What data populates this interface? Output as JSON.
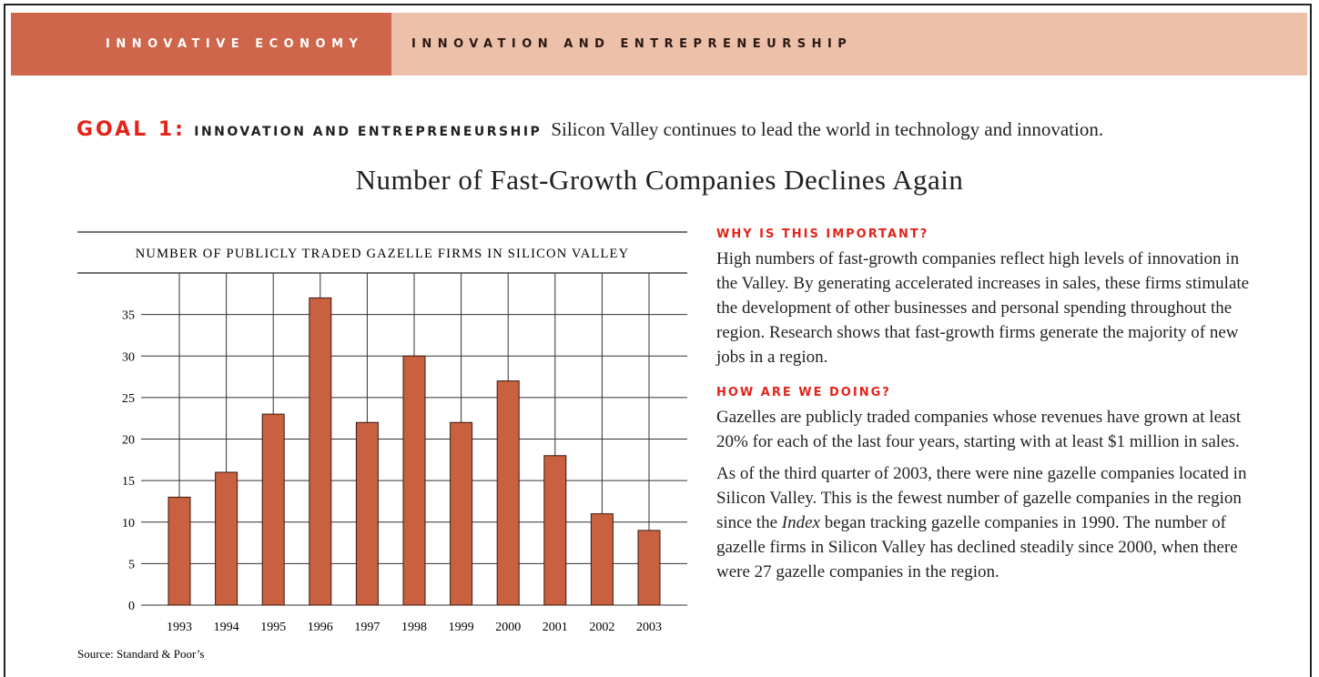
{
  "header": {
    "section": "INNOVATIVE ECONOMY",
    "topic": "INNOVATION AND ENTREPRENEURSHIP"
  },
  "goal": {
    "label": "GOAL 1:",
    "name": "INNOVATION AND ENTREPRENEURSHIP",
    "statement": "Silicon Valley continues to lead the world in technology and innovation."
  },
  "title": "Number of Fast-Growth Companies Declines Again",
  "chart_data": {
    "type": "bar",
    "title": "NUMBER OF PUBLICLY TRADED GAZELLE FIRMS IN SILICON VALLEY",
    "categories": [
      "1993",
      "1994",
      "1995",
      "1996",
      "1997",
      "1998",
      "1999",
      "2000",
      "2001",
      "2002",
      "2003"
    ],
    "values": [
      13,
      16,
      23,
      37,
      22,
      30,
      22,
      27,
      18,
      11,
      9
    ],
    "color": "#c9603f",
    "ylim": [
      0,
      40
    ],
    "yticks": [
      0,
      5,
      10,
      15,
      20,
      25,
      30,
      35
    ],
    "grid": true,
    "source": "Source: Standard & Poor’s"
  },
  "sections": [
    {
      "heading": "WHY IS THIS IMPORTANT?",
      "paragraphs": [
        [
          {
            "text": "High numbers of fast-growth companies reflect high levels of innovation in the Valley. By generating accelerated increases in sales, these firms stimulate the development of other businesses and personal spending throughout the region. Research shows that fast-growth firms generate the majority of new jobs in a region."
          }
        ]
      ]
    },
    {
      "heading": "HOW ARE WE DOING?",
      "paragraphs": [
        [
          {
            "text": "Gazelles are publicly traded companies whose revenues have grown at least 20% for each of the last four years, starting with at least $1 million in sales."
          }
        ],
        [
          {
            "text": "As of the third quarter of 2003, there were nine gazelle companies located in Silicon Valley. This is the fewest number of gazelle companies in the region since the "
          },
          {
            "text": "Index",
            "italic": true
          },
          {
            "text": " began tracking gazelle companies in 1990. The number of gazelle firms in Silicon Valley has declined steadily since 2000, when there were 27 gazelle companies in the region."
          }
        ]
      ]
    }
  ]
}
